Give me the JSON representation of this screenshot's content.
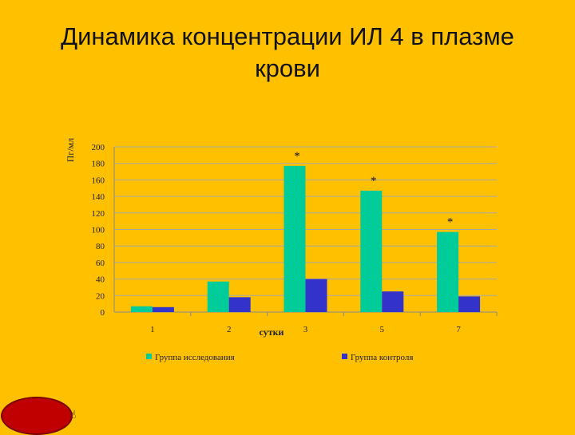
{
  "slide": {
    "title_line1": "Динамика концентрации ИЛ 4 в плазме",
    "title_line2": "крови",
    "nav_icon": "return-button-icon",
    "nav_glyph": "☝"
  },
  "colors": {
    "background": "#FFC000",
    "study_group": "#00CC99",
    "control_group": "#3333CC",
    "nav_button": "#C00000"
  },
  "chart_data": {
    "type": "bar",
    "title": "",
    "xlabel": "сутки",
    "ylabel": "Пг/мл",
    "categories": [
      "1",
      "2",
      "3",
      "5",
      "7"
    ],
    "series": [
      {
        "name": "Группа исследования",
        "values": [
          7,
          37,
          177,
          147,
          97
        ]
      },
      {
        "name": "Группа контроля",
        "values": [
          6,
          18,
          40,
          25,
          19
        ]
      }
    ],
    "annotations": [
      {
        "category": "3",
        "series": "Группа исследования",
        "text": "*"
      },
      {
        "category": "5",
        "series": "Группа исследования",
        "text": "*"
      },
      {
        "category": "7",
        "series": "Группа исследования",
        "text": "*"
      }
    ],
    "yticks": [
      0,
      20,
      40,
      60,
      80,
      100,
      120,
      140,
      160,
      180,
      200
    ],
    "ylim": [
      0,
      200
    ],
    "grid": true,
    "legend": "bottom"
  }
}
